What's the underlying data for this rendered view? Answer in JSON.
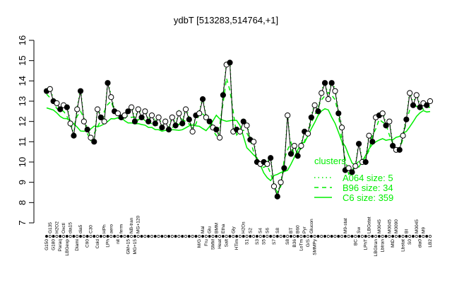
{
  "chart_data": {
    "type": "line",
    "title": "ydbT [513283,514764,+1]",
    "xlabel": "",
    "ylabel": "",
    "ylim": [
      7,
      16
    ],
    "yticks": [
      7,
      8,
      9,
      10,
      11,
      12,
      13,
      14,
      15,
      16
    ],
    "grid": false,
    "legend": {
      "title": "clusters",
      "placement": "bottom-right",
      "entries": [
        {
          "label": "A064 size: 5",
          "style": "dotted"
        },
        {
          "label": "B96 size: 34",
          "style": "dashed"
        },
        {
          "label": "C6 size: 359",
          "style": "solid"
        }
      ]
    },
    "colors": {
      "profile": "#000000",
      "clusters": "#00ee00"
    },
    "points": [
      {
        "label": "G150",
        "value": 13.5
      },
      {
        "label": "G135",
        "value": 13.6
      },
      {
        "label": "G180",
        "value": 13.0
      },
      {
        "label": "H2O2",
        "value": 12.9
      },
      {
        "label": "Paraq",
        "value": 12.6
      },
      {
        "label": "Oxctl",
        "value": 12.8
      },
      {
        "label": "LBGexp",
        "value": 12.7
      },
      {
        "label": "dia15",
        "value": 11.9
      },
      {
        "label": "",
        "value": 11.3
      },
      {
        "label": "Diami",
        "value": 12.6
      },
      {
        "label": "dia5",
        "value": 13.5
      },
      {
        "label": "",
        "value": 12.0
      },
      {
        "label": "C90",
        "value": 11.6
      },
      {
        "label": "C30",
        "value": 11.2
      },
      {
        "label": "",
        "value": 11.0
      },
      {
        "label": "Cold",
        "value": 12.6
      },
      {
        "label": "",
        "value": 12.2
      },
      {
        "label": "HPh",
        "value": 12.0
      },
      {
        "label": "LPh",
        "value": 13.9
      },
      {
        "label": "aero",
        "value": 13.2
      },
      {
        "label": "",
        "value": 12.5
      },
      {
        "label": "nit",
        "value": 12.4
      },
      {
        "label": "ferm",
        "value": 12.2
      },
      {
        "label": "",
        "value": 12.3
      },
      {
        "label": "GM+15",
        "value": 12.5
      },
      {
        "label": "NB-tran",
        "value": 12.7
      },
      {
        "label": "MG+15",
        "value": 12.0
      },
      {
        "label": "MG+120",
        "value": 12.6
      },
      {
        "label": "",
        "value": 12.2
      },
      {
        "label": "",
        "value": 12.5
      },
      {
        "label": "",
        "value": 12.0
      },
      {
        "label": "",
        "value": 12.3
      },
      {
        "label": "",
        "value": 11.9
      },
      {
        "label": "",
        "value": 12.2
      },
      {
        "label": "",
        "value": 11.7
      },
      {
        "label": "",
        "value": 12.0
      },
      {
        "label": "",
        "value": 11.6
      },
      {
        "label": "",
        "value": 12.2
      },
      {
        "label": "",
        "value": 11.8
      },
      {
        "label": "",
        "value": 12.4
      },
      {
        "label": "",
        "value": 11.9
      },
      {
        "label": "",
        "value": 12.6
      },
      {
        "label": "",
        "value": 12.1
      },
      {
        "label": "",
        "value": 11.5
      },
      {
        "label": "",
        "value": 12.3
      },
      {
        "label": "M/G",
        "value": 12.4
      },
      {
        "label": "Mal",
        "value": 13.1
      },
      {
        "label": "Fru",
        "value": 12.2
      },
      {
        "label": "Glu",
        "value": 12.0
      },
      {
        "label": "SMM",
        "value": 11.7
      },
      {
        "label": "BMM",
        "value": 11.6
      },
      {
        "label": "Heat",
        "value": 11.2
      },
      {
        "label": "Etha",
        "value": 13.3
      },
      {
        "label": "Salt",
        "value": 14.8
      },
      {
        "label": "",
        "value": 14.9
      },
      {
        "label": "Gly",
        "value": 11.5
      },
      {
        "label": "HTim",
        "value": 11.6
      },
      {
        "label": "",
        "value": 11.5
      },
      {
        "label": "H2Os",
        "value": 12.0
      },
      {
        "label": "S1",
        "value": 11.8
      },
      {
        "label": "S2",
        "value": 11.1
      },
      {
        "label": "",
        "value": 11.0
      },
      {
        "label": "S3",
        "value": 10.0
      },
      {
        "label": "S4",
        "value": 9.9
      },
      {
        "label": "S5",
        "value": 10.0
      },
      {
        "label": "S6",
        "value": 9.9
      },
      {
        "label": "",
        "value": 10.2
      },
      {
        "label": "S7",
        "value": 8.8
      },
      {
        "label": "S8",
        "value": 8.3
      },
      {
        "label": "",
        "value": 9.0
      },
      {
        "label": "",
        "value": 9.7
      },
      {
        "label": "S8",
        "value": 12.3
      },
      {
        "label": "BT",
        "value": 10.4
      },
      {
        "label": "B36",
        "value": 10.8
      },
      {
        "label": "B60",
        "value": 10.3
      },
      {
        "label": "LoTm",
        "value": 10.8
      },
      {
        "label": "Pyr",
        "value": 11.5
      },
      {
        "label": "G/S",
        "value": 11.4
      },
      {
        "label": "Glucon",
        "value": 12.2
      },
      {
        "label": "SMMPy",
        "value": 12.8
      },
      {
        "label": "",
        "value": 12.5
      },
      {
        "label": "",
        "value": 13.4
      },
      {
        "label": "",
        "value": 13.9
      },
      {
        "label": "",
        "value": 13.1
      },
      {
        "label": "",
        "value": 13.9
      },
      {
        "label": "",
        "value": 13.5
      },
      {
        "label": "",
        "value": 12.4
      },
      {
        "label": "",
        "value": 11.7
      },
      {
        "label": "M9-stat",
        "value": 9.6
      },
      {
        "label": "",
        "value": 9.7
      },
      {
        "label": "",
        "value": 9.5
      },
      {
        "label": "BC",
        "value": 9.8
      },
      {
        "label": "Sw",
        "value": 10.9
      },
      {
        "label": "",
        "value": 10.0
      },
      {
        "label": "LPhT",
        "value": 10.0
      },
      {
        "label": "LBGstat",
        "value": 11.3
      },
      {
        "label": "",
        "value": 11.0
      },
      {
        "label": "LBGtran",
        "value": 12.2
      },
      {
        "label": "M0045",
        "value": 12.3
      },
      {
        "label": "Lbtran",
        "value": 12.4
      },
      {
        "label": "",
        "value": 11.8
      },
      {
        "label": "M0045",
        "value": 12.0
      },
      {
        "label": "MtD",
        "value": 10.8
      },
      {
        "label": "M0090",
        "value": 10.6
      },
      {
        "label": "",
        "value": 10.6
      },
      {
        "label": "Lbstat",
        "value": 11.3
      },
      {
        "label": "BI",
        "value": 12.1
      },
      {
        "label": "S0",
        "value": 13.4
      },
      {
        "label": "",
        "value": 12.8
      },
      {
        "label": "M0045",
        "value": 13.3
      },
      {
        "label": "dia0",
        "value": 12.7
      },
      {
        "label": "M9",
        "value": 12.9
      },
      {
        "label": "",
        "value": 12.8
      },
      {
        "label": "LB2",
        "value": 13.0
      }
    ]
  }
}
